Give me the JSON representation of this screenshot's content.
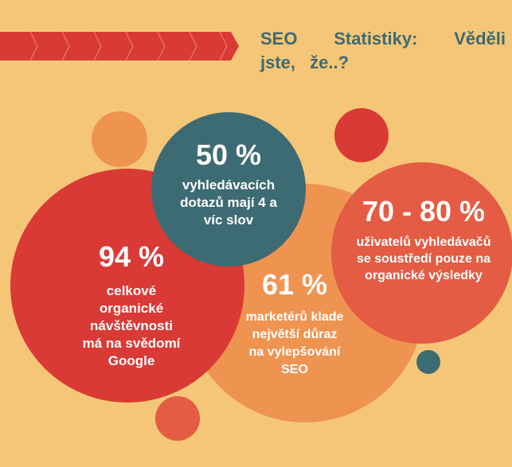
{
  "title": "SEO Statistiky: Věděli jste, že..?",
  "stats": [
    {
      "value": "94 %",
      "description": "celkové organické návštěvnosti má na svědomí Google"
    },
    {
      "value": "50 %",
      "description": "vyhledávacích dotazů mají 4 a víc slov"
    },
    {
      "value": "61 %",
      "description": "marketérů klade největší důraz na vylepšování SEO"
    },
    {
      "value": "70 - 80 %",
      "description": "uživatelů vyhledávačů se soustředí pouze na organické výsledky"
    }
  ],
  "colors": {
    "background": "#f5c677",
    "teal": "#3d6b73",
    "red": "#d93a35",
    "orange": "#ef9350",
    "coral": "#e35c43"
  }
}
